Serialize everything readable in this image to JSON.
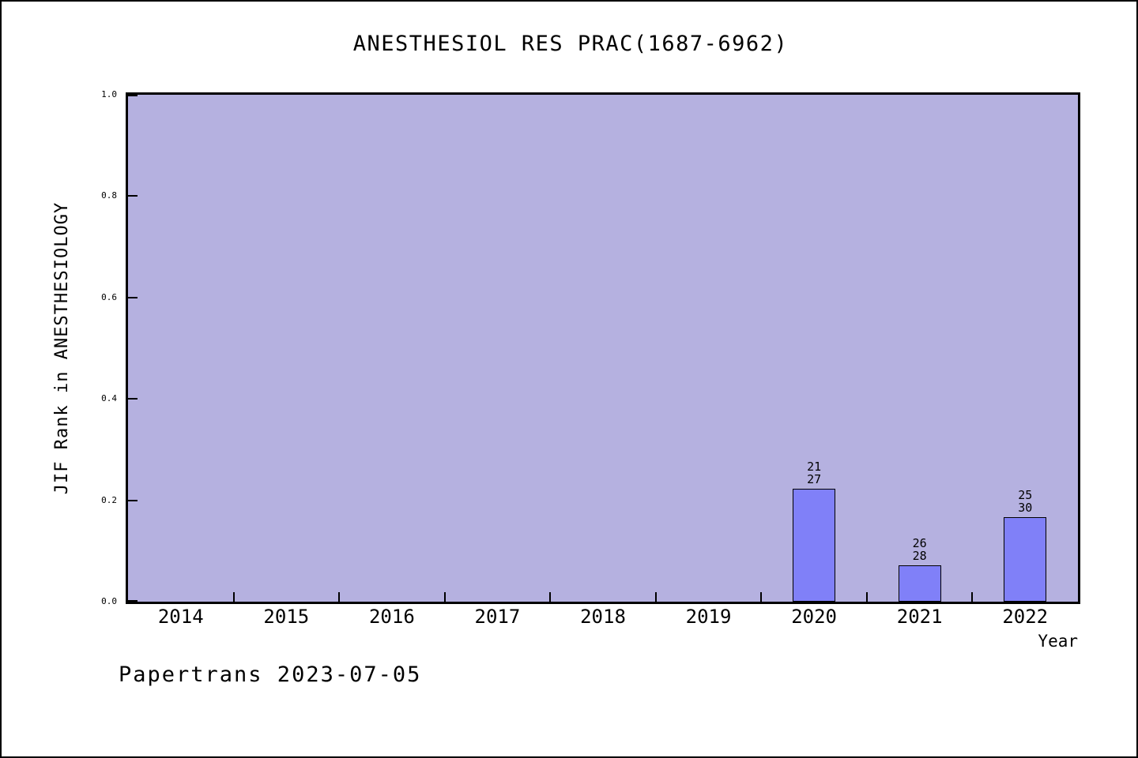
{
  "chart_data": {
    "type": "bar",
    "title": "ANESTHESIOL RES PRAC(1687-6962)",
    "xlabel": "Year",
    "ylabel": "JIF Rank in ANESTHESIOLOGY",
    "categories": [
      "2014",
      "2015",
      "2016",
      "2017",
      "2018",
      "2019",
      "2020",
      "2021",
      "2022"
    ],
    "values": [
      null,
      null,
      null,
      null,
      null,
      null,
      0.2222,
      0.0714,
      0.1667
    ],
    "bar_labels": [
      null,
      null,
      null,
      null,
      null,
      null,
      [
        "21",
        "27"
      ],
      [
        "26",
        "28"
      ],
      [
        "25",
        "30"
      ]
    ],
    "ylim": [
      0.0,
      1.0
    ],
    "yticks": [
      {
        "v": 0.0,
        "label": "0.0"
      },
      {
        "v": 0.2,
        "label": "0.2"
      },
      {
        "v": 0.4,
        "label": "0.4"
      },
      {
        "v": 0.6,
        "label": "0.6"
      },
      {
        "v": 0.8,
        "label": "0.8"
      },
      {
        "v": 1.0,
        "label": "1.0"
      }
    ],
    "grid": false,
    "legend": null,
    "colors": {
      "bar_fill": "#8080f8",
      "bar_edge": "#000000",
      "plot_bg": "#b5b1e0",
      "axis": "#000000"
    }
  },
  "footer": {
    "text": "Papertrans 2023-07-05"
  }
}
